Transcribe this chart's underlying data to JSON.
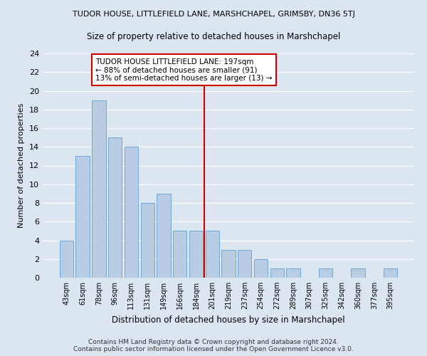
{
  "title": "TUDOR HOUSE, LITTLEFIELD LANE, MARSHCHAPEL, GRIMSBY, DN36 5TJ",
  "subtitle": "Size of property relative to detached houses in Marshchapel",
  "xlabel": "Distribution of detached houses by size in Marshchapel",
  "ylabel": "Number of detached properties",
  "footer_line1": "Contains HM Land Registry data © Crown copyright and database right 2024.",
  "footer_line2": "Contains public sector information licensed under the Open Government Licence v3.0.",
  "annotation_line1": "TUDOR HOUSE LITTLEFIELD LANE: 197sqm",
  "annotation_line2": "← 88% of detached houses are smaller (91)",
  "annotation_line3": "13% of semi-detached houses are larger (13) →",
  "bar_labels": [
    "43sqm",
    "61sqm",
    "78sqm",
    "96sqm",
    "113sqm",
    "131sqm",
    "149sqm",
    "166sqm",
    "184sqm",
    "201sqm",
    "219sqm",
    "237sqm",
    "254sqm",
    "272sqm",
    "289sqm",
    "307sqm",
    "325sqm",
    "342sqm",
    "360sqm",
    "377sqm",
    "395sqm"
  ],
  "bar_values": [
    4,
    13,
    19,
    15,
    14,
    8,
    9,
    5,
    5,
    5,
    3,
    3,
    2,
    1,
    1,
    0,
    1,
    0,
    1,
    0,
    1
  ],
  "bar_color": "#b8cce4",
  "bar_edge_color": "#6fa8dc",
  "reference_line_index": 9,
  "reference_line_color": "#cc0000",
  "ylim": [
    0,
    24
  ],
  "yticks": [
    0,
    2,
    4,
    6,
    8,
    10,
    12,
    14,
    16,
    18,
    20,
    22,
    24
  ],
  "background_color": "#dce6f1",
  "plot_background_color": "#dce6f1",
  "grid_color": "#ffffff",
  "annotation_box_facecolor": "#ffffff",
  "annotation_box_edgecolor": "#cc0000"
}
